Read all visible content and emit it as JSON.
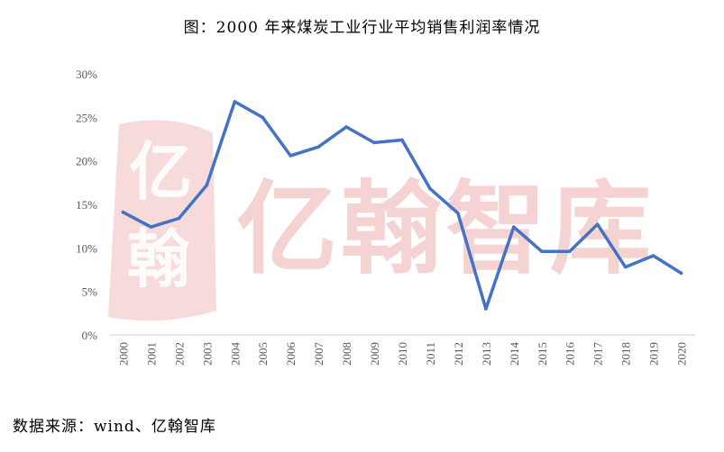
{
  "title": "图：2000 年来煤炭工业行业平均销售利润率情况",
  "source": "数据来源：wind、亿翰智库",
  "watermark": {
    "text": "亿翰智库",
    "badge_chars": [
      "亿",
      "翰"
    ],
    "color": "#f3c9c9"
  },
  "chart_data": {
    "type": "line",
    "title": "图：2000 年来煤炭工业行业平均销售利润率情况",
    "xlabel": "",
    "ylabel": "",
    "categories": [
      "2000",
      "2001",
      "2002",
      "2003",
      "2004",
      "2005",
      "2006",
      "2007",
      "2008",
      "2009",
      "2010",
      "2011",
      "2012",
      "2013",
      "2014",
      "2015",
      "2016",
      "2017",
      "2018",
      "2019",
      "2020"
    ],
    "series": [
      {
        "values": [
          14.1,
          12.4,
          13.4,
          17.2,
          26.8,
          25.0,
          20.6,
          21.6,
          23.9,
          22.1,
          22.4,
          16.8,
          14.0,
          3.0,
          12.4,
          9.6,
          9.6,
          12.7,
          7.8,
          9.1,
          7.1
        ],
        "color": "#4472c4"
      }
    ],
    "ylim": [
      0,
      30
    ],
    "yticks": [
      0,
      5,
      10,
      15,
      20,
      25,
      30
    ],
    "ytick_labels": [
      "0%",
      "5%",
      "10%",
      "15%",
      "20%",
      "25%",
      "30%"
    ],
    "grid": false,
    "legend": "none"
  }
}
